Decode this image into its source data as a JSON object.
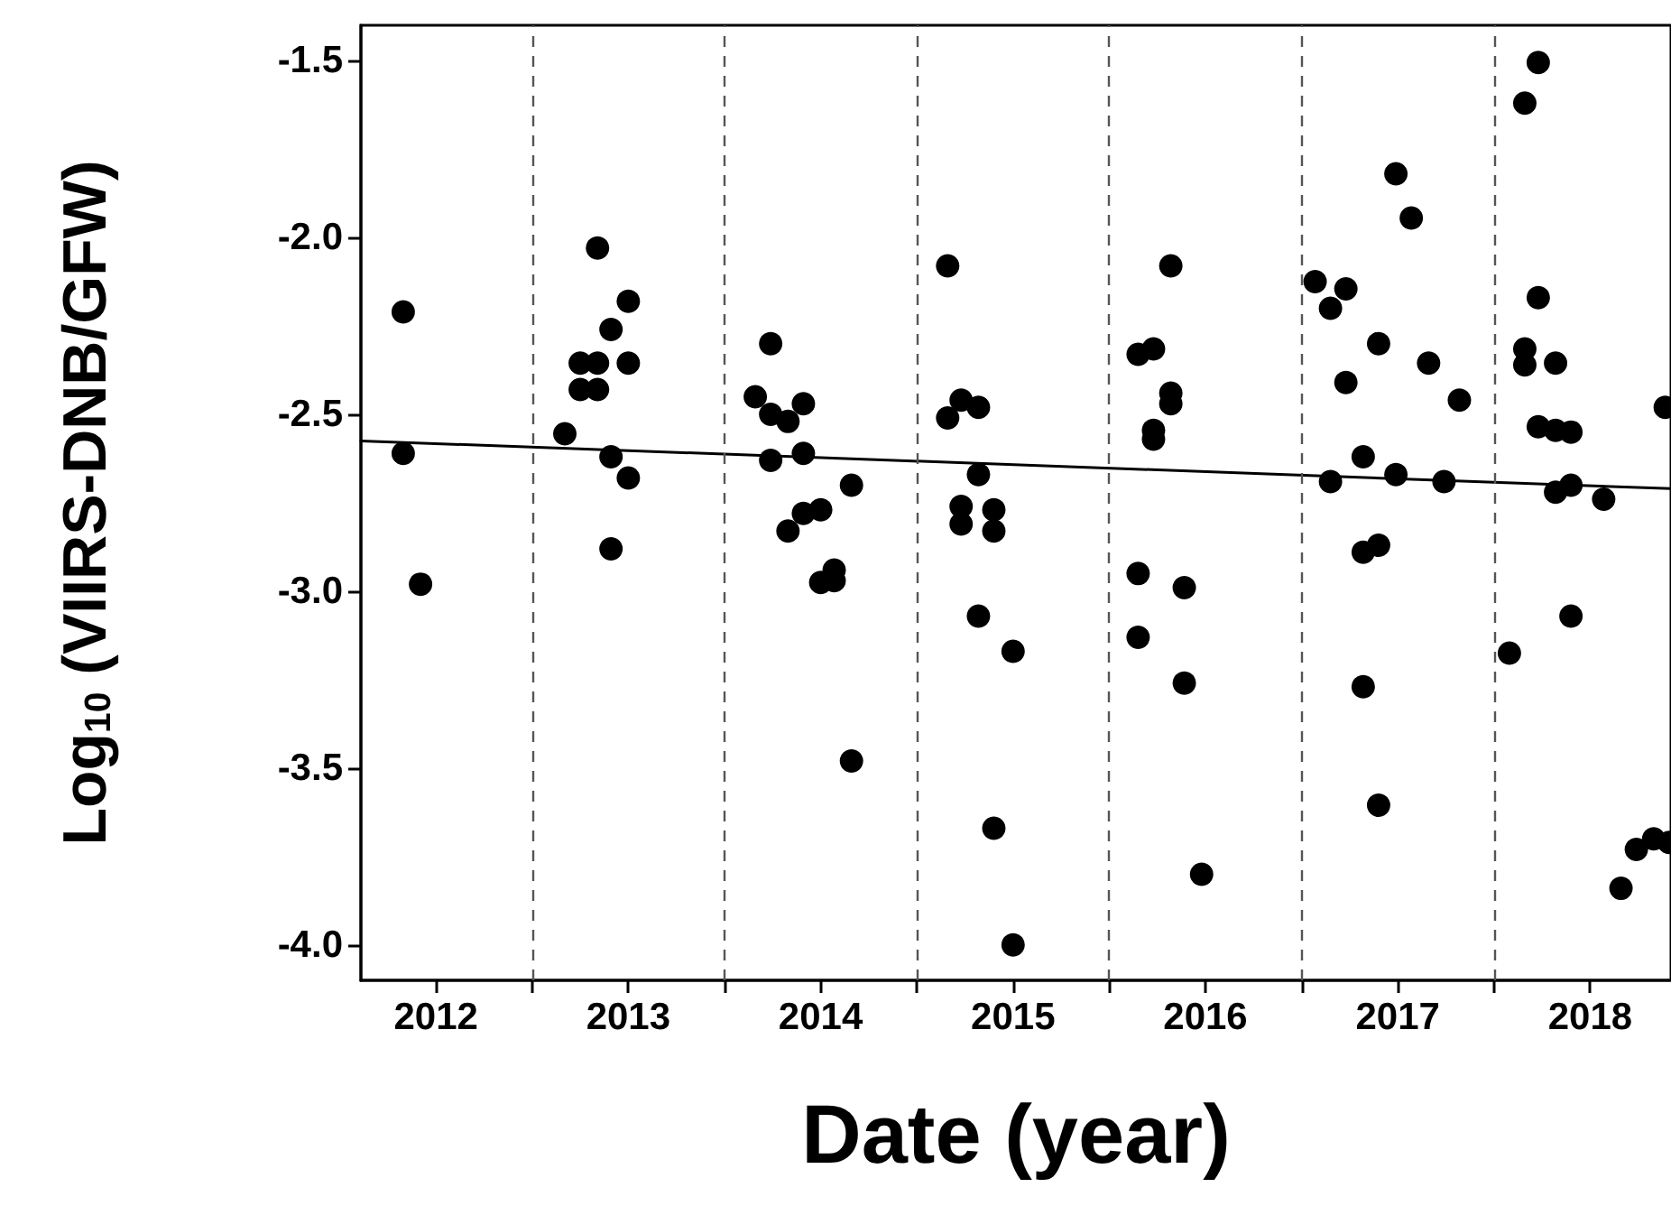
{
  "chart_data": {
    "type": "scatter",
    "xlabel": "Date (year)",
    "ylabel": "Log$_{10}$ (VIIRS-DNB/GFW)",
    "xlim": [
      2012.11,
      2018.92
    ],
    "ylim": [
      -4.1,
      -1.4
    ],
    "xticks": [
      {
        "value": 2012.5,
        "label": "2012"
      },
      {
        "value": 2013,
        "label": null
      },
      {
        "value": 2013.5,
        "label": "2013"
      },
      {
        "value": 2014,
        "label": null
      },
      {
        "value": 2014.5,
        "label": "2014"
      },
      {
        "value": 2015,
        "label": null
      },
      {
        "value": 2015.5,
        "label": "2015"
      },
      {
        "value": 2016,
        "label": null
      },
      {
        "value": 2016.5,
        "label": "2016"
      },
      {
        "value": 2017,
        "label": null
      },
      {
        "value": 2017.5,
        "label": "2017"
      },
      {
        "value": 2018,
        "label": null
      },
      {
        "value": 2018.5,
        "label": "2018"
      }
    ],
    "yticks": [
      {
        "value": -4,
        "label": "-4.0"
      },
      {
        "value": -3.5,
        "label": "-3.5"
      },
      {
        "value": -3,
        "label": "-3.0"
      },
      {
        "value": -2.5,
        "label": "-2.5"
      },
      {
        "value": -2,
        "label": "-2.0"
      },
      {
        "value": -1.5,
        "label": "-1.5"
      }
    ],
    "grid": false,
    "marker": "circle",
    "ref_lines": [
      {
        "axis": "x",
        "value": 2013,
        "color": "#555555",
        "line_style": "dashed"
      },
      {
        "axis": "x",
        "value": 2014,
        "color": "#555555",
        "line_style": "dashed"
      },
      {
        "axis": "x",
        "value": 2015,
        "color": "#555555",
        "line_style": "dashed"
      },
      {
        "axis": "x",
        "value": 2016,
        "color": "#555555",
        "line_style": "dashed"
      },
      {
        "axis": "x",
        "value": 2017,
        "color": "#555555",
        "line_style": "dashed"
      },
      {
        "axis": "x",
        "value": 2018,
        "color": "#555555",
        "line_style": "dashed"
      }
    ],
    "series": [
      {
        "color": "#000000",
        "x": [
          2012.33,
          2012.33,
          2012.42,
          2013.17,
          2013.25,
          2013.34,
          2013.25,
          2013.34,
          2013.34,
          2013.5,
          2013.41,
          2013.5,
          2013.41,
          2013.5,
          2013.41,
          2014.16,
          2014.24,
          2014.24,
          2014.33,
          2014.41,
          2014.24,
          2014.41,
          2014.41,
          2014.33,
          2014.66,
          2014.5,
          2014.5,
          2014.57,
          2014.57,
          2014.66,
          2015.16,
          2015.16,
          2015.23,
          2015.32,
          2015.32,
          2015.23,
          2015.23,
          2015.4,
          2015.4,
          2015.32,
          2015.5,
          2015.4,
          2015.5,
          2016.32,
          2016.15,
          2016.23,
          2016.32,
          2016.32,
          2016.23,
          2016.23,
          2016.15,
          2016.39,
          2016.15,
          2016.39,
          2016.48,
          2017.07,
          2017.23,
          2017.15,
          2017.49,
          2017.57,
          2017.4,
          2017.23,
          2017.66,
          2017.82,
          2017.32,
          2017.15,
          2017.49,
          2017.74,
          2017.4,
          2017.32,
          2017.32,
          2017.4,
          2018.23,
          2018.16,
          2018.23,
          2018.16,
          2018.16,
          2018.32,
          2018.23,
          2018.32,
          2018.4,
          2018.89,
          2018.4,
          2018.32,
          2018.57,
          2018.08,
          2018.4,
          2018.66,
          2018.74,
          2018.83,
          2018.91
        ],
        "values": [
          -2.21,
          -2.61,
          -2.98,
          -2.555,
          -2.355,
          -2.355,
          -2.43,
          -2.43,
          -2.03,
          -2.18,
          -2.26,
          -2.355,
          -2.62,
          -2.68,
          -2.88,
          -2.45,
          -2.3,
          -2.5,
          -2.52,
          -2.47,
          -2.63,
          -2.61,
          -2.78,
          -2.83,
          -2.7,
          -2.77,
          -2.975,
          -2.94,
          -2.97,
          -3.48,
          -2.08,
          -2.51,
          -2.46,
          -2.48,
          -2.67,
          -2.76,
          -2.81,
          -2.77,
          -2.83,
          -3.07,
          -3.17,
          -3.67,
          -4.0,
          -2.08,
          -2.33,
          -2.315,
          -2.44,
          -2.47,
          -2.545,
          -2.57,
          -2.95,
          -2.99,
          -3.13,
          -3.26,
          -3.8,
          -2.125,
          -2.145,
          -2.2,
          -1.82,
          -1.945,
          -2.3,
          -2.41,
          -2.355,
          -2.46,
          -2.62,
          -2.69,
          -2.67,
          -2.69,
          -2.87,
          -2.89,
          -3.27,
          -3.605,
          -1.505,
          -1.62,
          -2.17,
          -2.315,
          -2.36,
          -2.355,
          -2.535,
          -2.545,
          -2.55,
          -2.48,
          -2.7,
          -2.72,
          -2.74,
          -3.175,
          -3.07,
          -3.84,
          -3.73,
          -3.7,
          -3.71
        ]
      },
      {
        "type": "line",
        "color": "#000000",
        "marker": "none",
        "line_style": "solid",
        "x": [
          2012.11,
          2018.92
        ],
        "values": [
          -2.575,
          -2.71
        ]
      }
    ]
  }
}
